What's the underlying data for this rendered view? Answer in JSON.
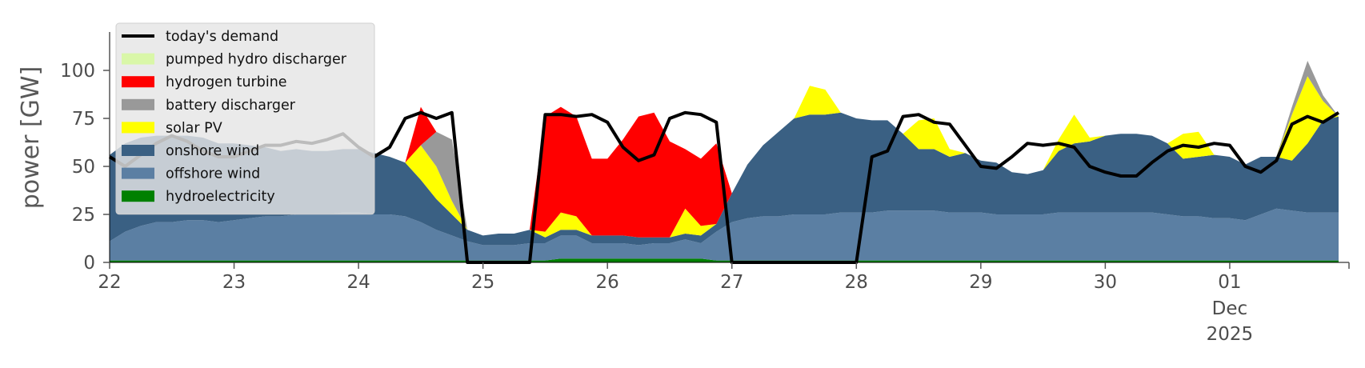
{
  "chart_data": {
    "type": "area",
    "title": "",
    "xlabel": "",
    "ylabel": "power [GW]",
    "xlim": [
      "2025-11-22 00:00",
      "2025-12-01 23:00"
    ],
    "ylim": [
      0,
      120
    ],
    "yticks": [
      0,
      25,
      50,
      75,
      100
    ],
    "x_tick_labels": [
      {
        "date": "2025-11-22",
        "label": "22"
      },
      {
        "date": "2025-11-23",
        "label": "23"
      },
      {
        "date": "2025-11-24",
        "label": "24"
      },
      {
        "date": "2025-11-25",
        "label": "25"
      },
      {
        "date": "2025-11-26",
        "label": "26"
      },
      {
        "date": "2025-11-27",
        "label": "27"
      },
      {
        "date": "2025-11-28",
        "label": "28"
      },
      {
        "date": "2025-11-29",
        "label": "29"
      },
      {
        "date": "2025-11-30",
        "label": "30"
      },
      {
        "date": "2025-12-01",
        "label": "01",
        "sublabels": [
          "Dec",
          "2025"
        ]
      }
    ],
    "grid": false,
    "stacked": true,
    "legend_position": "top-left",
    "x_resolution": "3-hourly from 2025-11-22 00:00",
    "x": [
      "11-22 00h",
      "11-22 03h",
      "11-22 06h",
      "11-22 09h",
      "11-22 12h",
      "11-22 15h",
      "11-22 18h",
      "11-22 21h",
      "11-23 00h",
      "11-23 03h",
      "11-23 06h",
      "11-23 09h",
      "11-23 12h",
      "11-23 15h",
      "11-23 18h",
      "11-23 21h",
      "11-24 00h",
      "11-24 03h",
      "11-24 06h",
      "11-24 09h",
      "11-24 12h",
      "11-24 15h",
      "11-24 18h",
      "11-24 21h",
      "11-25 00h",
      "11-25 03h",
      "11-25 06h",
      "11-25 09h",
      "11-25 12h",
      "11-25 15h",
      "11-25 18h",
      "11-25 21h",
      "11-26 00h",
      "11-26 03h",
      "11-26 06h",
      "11-26 09h",
      "11-26 12h",
      "11-26 15h",
      "11-26 18h",
      "11-26 21h",
      "11-27 00h",
      "11-27 03h",
      "11-27 06h",
      "11-27 09h",
      "11-27 12h",
      "11-27 15h",
      "11-27 18h",
      "11-27 21h",
      "11-28 00h",
      "11-28 03h",
      "11-28 06h",
      "11-28 09h",
      "11-28 12h",
      "11-28 15h",
      "11-28 18h",
      "11-28 21h",
      "11-29 00h",
      "11-29 03h",
      "11-29 06h",
      "11-29 09h",
      "11-29 12h",
      "11-29 15h",
      "11-29 18h",
      "11-29 21h",
      "11-30 00h",
      "11-30 03h",
      "11-30 06h",
      "11-30 09h",
      "11-30 12h",
      "11-30 15h",
      "11-30 18h",
      "11-30 21h",
      "12-01 00h",
      "12-01 03h",
      "12-01 06h",
      "12-01 09h",
      "12-01 12h",
      "12-01 15h",
      "12-01 18h",
      "12-01 21h"
    ],
    "series": [
      {
        "name": "hydroelectricity",
        "color": "#008000",
        "values": [
          1,
          1,
          1,
          1,
          1,
          1,
          1,
          1,
          1,
          1,
          1,
          1,
          1,
          1,
          1,
          1,
          1,
          1,
          1,
          1,
          1,
          1,
          1,
          1,
          1,
          1,
          1,
          1,
          1,
          2,
          2,
          2,
          2,
          2,
          2,
          2,
          2,
          2,
          2,
          1,
          1,
          1,
          1,
          1,
          1,
          1,
          1,
          1,
          1,
          1,
          1,
          1,
          1,
          1,
          1,
          1,
          1,
          1,
          1,
          1,
          1,
          1,
          1,
          1,
          1,
          1,
          1,
          1,
          1,
          1,
          1,
          1,
          1,
          1,
          1,
          1,
          1,
          1,
          1,
          1
        ]
      },
      {
        "name": "offshore wind",
        "color": "#5b7fa3",
        "values": [
          10,
          15,
          18,
          20,
          20,
          21,
          21,
          20,
          21,
          22,
          23,
          23,
          24,
          24,
          24,
          25,
          25,
          24,
          24,
          23,
          20,
          16,
          13,
          10,
          8,
          8,
          8,
          9,
          9,
          12,
          12,
          8,
          8,
          8,
          7,
          8,
          8,
          10,
          8,
          15,
          20,
          22,
          23,
          23,
          24,
          24,
          24,
          25,
          25,
          25,
          26,
          26,
          26,
          26,
          25,
          25,
          25,
          24,
          24,
          24,
          24,
          25,
          25,
          25,
          25,
          25,
          25,
          25,
          24,
          23,
          23,
          22,
          22,
          21,
          24,
          27,
          26,
          25,
          25,
          25
        ]
      },
      {
        "name": "onshore wind",
        "color": "#3a6083",
        "values": [
          45,
          46,
          46,
          45,
          45,
          44,
          43,
          41,
          40,
          38,
          36,
          34,
          34,
          33,
          33,
          33,
          33,
          32,
          30,
          28,
          22,
          16,
          11,
          6,
          5,
          6,
          6,
          7,
          3,
          3,
          3,
          4,
          4,
          4,
          4,
          3,
          3,
          3,
          4,
          4,
          15,
          28,
          37,
          44,
          50,
          52,
          52,
          52,
          49,
          48,
          47,
          40,
          32,
          32,
          29,
          31,
          27,
          27,
          22,
          21,
          23,
          32,
          36,
          37,
          40,
          41,
          41,
          40,
          37,
          30,
          31,
          33,
          32,
          29,
          30,
          27,
          26,
          36,
          48,
          50
        ]
      },
      {
        "name": "solar PV",
        "color": "#ffff00",
        "values": [
          0,
          0,
          0,
          0,
          0,
          0,
          0,
          0,
          0,
          0,
          0,
          0,
          0,
          0,
          0,
          0,
          0,
          0,
          0,
          0,
          18,
          17,
          7,
          0,
          0,
          0,
          0,
          0,
          3,
          9,
          7,
          0,
          0,
          0,
          0,
          0,
          0,
          13,
          5,
          0,
          0,
          0,
          0,
          0,
          0,
          15,
          13,
          0,
          0,
          0,
          0,
          0,
          15,
          16,
          4,
          0,
          0,
          0,
          0,
          0,
          0,
          6,
          15,
          2,
          0,
          0,
          0,
          0,
          0,
          13,
          13,
          0,
          0,
          0,
          0,
          0,
          24,
          35,
          10,
          0
        ]
      },
      {
        "name": "battery discharger",
        "color": "#999999",
        "values": [
          0,
          0,
          0,
          0,
          0,
          0,
          0,
          0,
          0,
          0,
          0,
          0,
          0,
          0,
          0,
          0,
          0,
          0,
          0,
          0,
          0,
          18,
          32,
          0,
          0,
          0,
          0,
          0,
          0,
          0,
          0,
          0,
          0,
          0,
          0,
          0,
          0,
          0,
          0,
          0,
          0,
          0,
          0,
          0,
          0,
          0,
          0,
          0,
          0,
          0,
          0,
          0,
          0,
          0,
          0,
          0,
          0,
          0,
          0,
          0,
          0,
          0,
          0,
          0,
          0,
          0,
          0,
          0,
          0,
          0,
          0,
          0,
          0,
          0,
          0,
          0,
          4,
          8,
          3,
          0
        ]
      },
      {
        "name": "hydrogen turbine",
        "color": "#ff0000",
        "values": [
          0,
          0,
          0,
          0,
          0,
          0,
          0,
          0,
          0,
          0,
          0,
          0,
          0,
          0,
          0,
          0,
          0,
          0,
          0,
          0,
          20,
          0,
          0,
          0,
          0,
          0,
          0,
          0,
          60,
          55,
          52,
          40,
          40,
          50,
          63,
          65,
          50,
          31,
          35,
          42,
          0,
          0,
          0,
          0,
          0,
          0,
          0,
          0,
          0,
          0,
          0,
          0,
          0,
          0,
          0,
          0,
          0,
          0,
          0,
          0,
          0,
          0,
          0,
          0,
          0,
          0,
          0,
          0,
          0,
          0,
          0,
          0,
          0,
          0,
          0,
          0,
          0,
          0,
          0,
          0
        ]
      },
      {
        "name": "pumped hydro discharger",
        "color": "#d9f7a8",
        "values": [
          0,
          0,
          0,
          0,
          0,
          0,
          0,
          0,
          0,
          0,
          0,
          0,
          0,
          0,
          0,
          0,
          0,
          0,
          0,
          0,
          0,
          0,
          0,
          0,
          0,
          0,
          0,
          0,
          0,
          0,
          0,
          0,
          0,
          0,
          0,
          0,
          0,
          0,
          0,
          0,
          0,
          0,
          0,
          0,
          0,
          0,
          0,
          0,
          0,
          0,
          0,
          0,
          0,
          0,
          0,
          0,
          0,
          0,
          0,
          0,
          0,
          0,
          0,
          0,
          0,
          0,
          0,
          0,
          0,
          0,
          0,
          0,
          0,
          0,
          0,
          0,
          0,
          0,
          0,
          0
        ]
      },
      {
        "name": "today's demand",
        "color": "#000000",
        "type": "line",
        "values": [
          55,
          50,
          56,
          62,
          66,
          63,
          58,
          55,
          55,
          58,
          61,
          61,
          63,
          62,
          64,
          67,
          60,
          55,
          60,
          75,
          78,
          75,
          78,
          0,
          0,
          0,
          0,
          0,
          77,
          77,
          76,
          77,
          73,
          60,
          53,
          56,
          75,
          78,
          77,
          73,
          0,
          0,
          0,
          0,
          0,
          0,
          0,
          0,
          0,
          55,
          58,
          76,
          77,
          73,
          72,
          61,
          50,
          49,
          55,
          62,
          61,
          62,
          60,
          50,
          47,
          45,
          45,
          52,
          58,
          61,
          60,
          62,
          61,
          50,
          47,
          53,
          72,
          76,
          73,
          78
        ]
      }
    ]
  }
}
